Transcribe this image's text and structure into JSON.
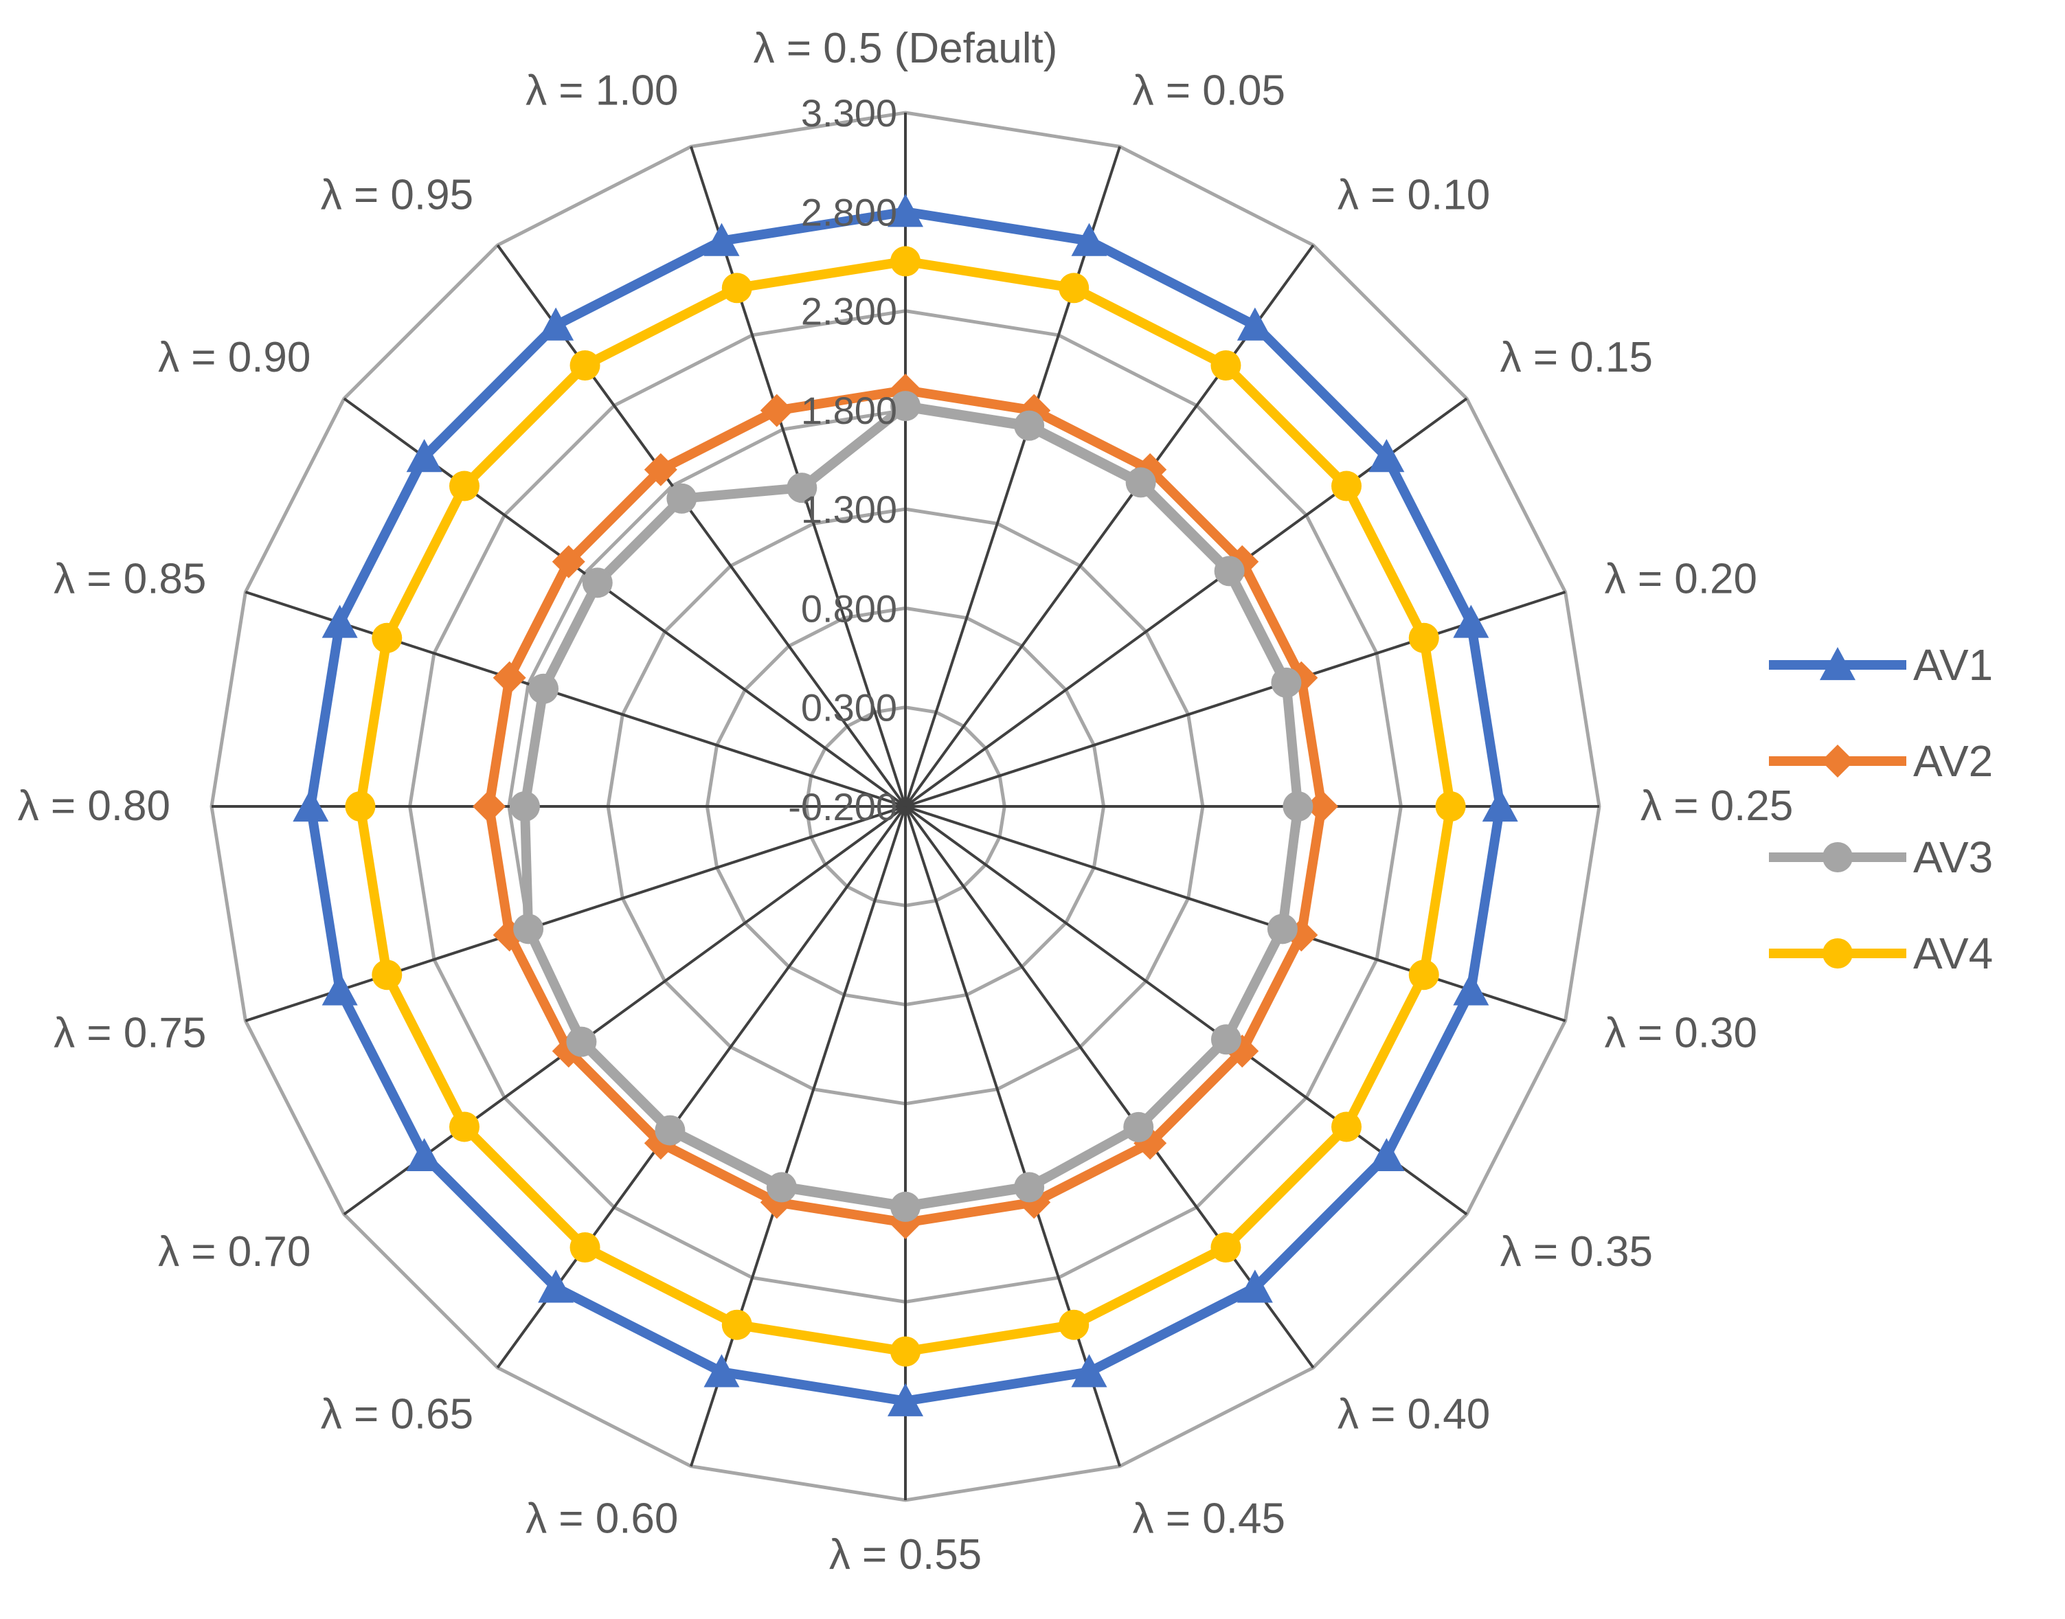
{
  "chart_data": {
    "type": "radar",
    "categories": [
      "λ = 0.5 (Default)",
      "λ = 0.05",
      "λ = 0.10",
      "λ = 0.15",
      "λ = 0.20",
      "λ = 0.25",
      "λ = 0.30",
      "λ = 0.35",
      "λ = 0.40",
      "λ = 0.45",
      "λ = 0.55",
      "λ = 0.60",
      "λ = 0.65",
      "λ = 0.70",
      "λ = 0.75",
      "λ = 0.80",
      "λ = 0.85",
      "λ = 0.90",
      "λ = 0.95",
      "λ = 1.00"
    ],
    "r_ticks": [
      "-0.200",
      "0.300",
      "0.800",
      "1.300",
      "1.800",
      "2.300",
      "2.800",
      "3.300"
    ],
    "r_range": [
      -0.2,
      3.3
    ],
    "r_step": 0.5,
    "grid": true,
    "legend_position": "right",
    "series": [
      {
        "name": "AV1",
        "color": "#4472C4",
        "marker": "triangle",
        "values": [
          2.8,
          2.8,
          2.8,
          2.8,
          2.8,
          2.8,
          2.8,
          2.8,
          2.8,
          2.8,
          2.8,
          2.8,
          2.8,
          2.8,
          2.8,
          2.8,
          2.8,
          2.8,
          2.8,
          2.8
        ]
      },
      {
        "name": "AV2",
        "color": "#ED7D31",
        "marker": "diamond",
        "values": [
          1.9,
          1.9,
          1.9,
          1.9,
          1.9,
          1.9,
          1.9,
          1.9,
          1.9,
          1.9,
          1.9,
          1.9,
          1.9,
          1.9,
          1.9,
          1.9,
          1.9,
          1.9,
          1.9,
          1.9
        ]
      },
      {
        "name": "AV3",
        "color": "#A5A5A5",
        "marker": "circle",
        "values": [
          1.82,
          1.82,
          1.82,
          1.82,
          1.82,
          1.78,
          1.8,
          1.8,
          1.8,
          1.82,
          1.82,
          1.82,
          1.82,
          1.82,
          1.8,
          1.72,
          1.72,
          1.72,
          1.72,
          1.49
        ]
      },
      {
        "name": "AV4",
        "color": "#FFC000",
        "marker": "circle",
        "values": [
          2.55,
          2.55,
          2.55,
          2.55,
          2.55,
          2.55,
          2.55,
          2.55,
          2.55,
          2.55,
          2.55,
          2.55,
          2.55,
          2.55,
          2.55,
          2.55,
          2.55,
          2.55,
          2.55,
          2.55
        ]
      }
    ]
  }
}
